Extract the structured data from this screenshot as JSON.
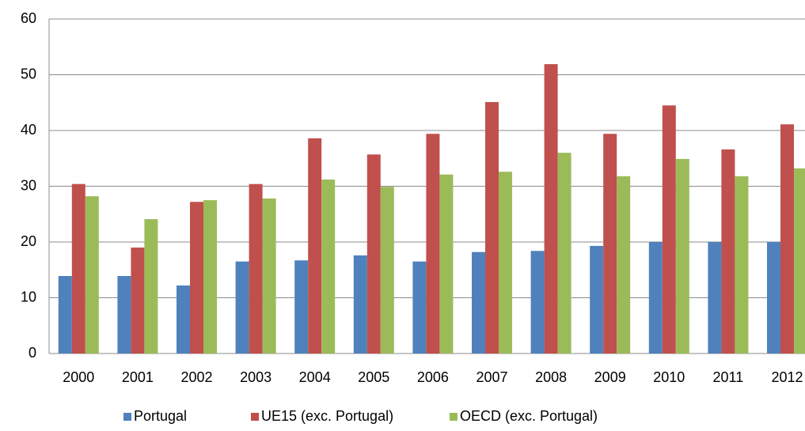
{
  "chart_data": {
    "type": "bar",
    "categories": [
      "2000",
      "2001",
      "2002",
      "2003",
      "2004",
      "2005",
      "2006",
      "2007",
      "2008",
      "2009",
      "2010",
      "2011",
      "2012"
    ],
    "series": [
      {
        "name": "Portugal",
        "color": "#4f81bd",
        "values": [
          13.9,
          13.9,
          12.2,
          16.5,
          16.7,
          17.6,
          16.5,
          18.2,
          18.4,
          19.3,
          20,
          20,
          20
        ]
      },
      {
        "name": "UE15 (exc. Portugal)",
        "color": "#c0504d",
        "values": [
          30.4,
          19,
          27.2,
          30.4,
          38.6,
          35.7,
          39.4,
          45.1,
          51.9,
          39.4,
          44.5,
          36.6,
          41.1
        ]
      },
      {
        "name": "OECD (exc. Portugal)",
        "color": "#9bbb59",
        "values": [
          28.2,
          24.1,
          27.5,
          27.8,
          31.2,
          29.9,
          32.1,
          32.6,
          36,
          31.8,
          34.9,
          31.8,
          33.2
        ]
      }
    ],
    "ylim": [
      0,
      60
    ],
    "yticks": [
      0,
      10,
      20,
      30,
      40,
      50,
      60
    ],
    "grid": true,
    "legend": "bottom"
  }
}
